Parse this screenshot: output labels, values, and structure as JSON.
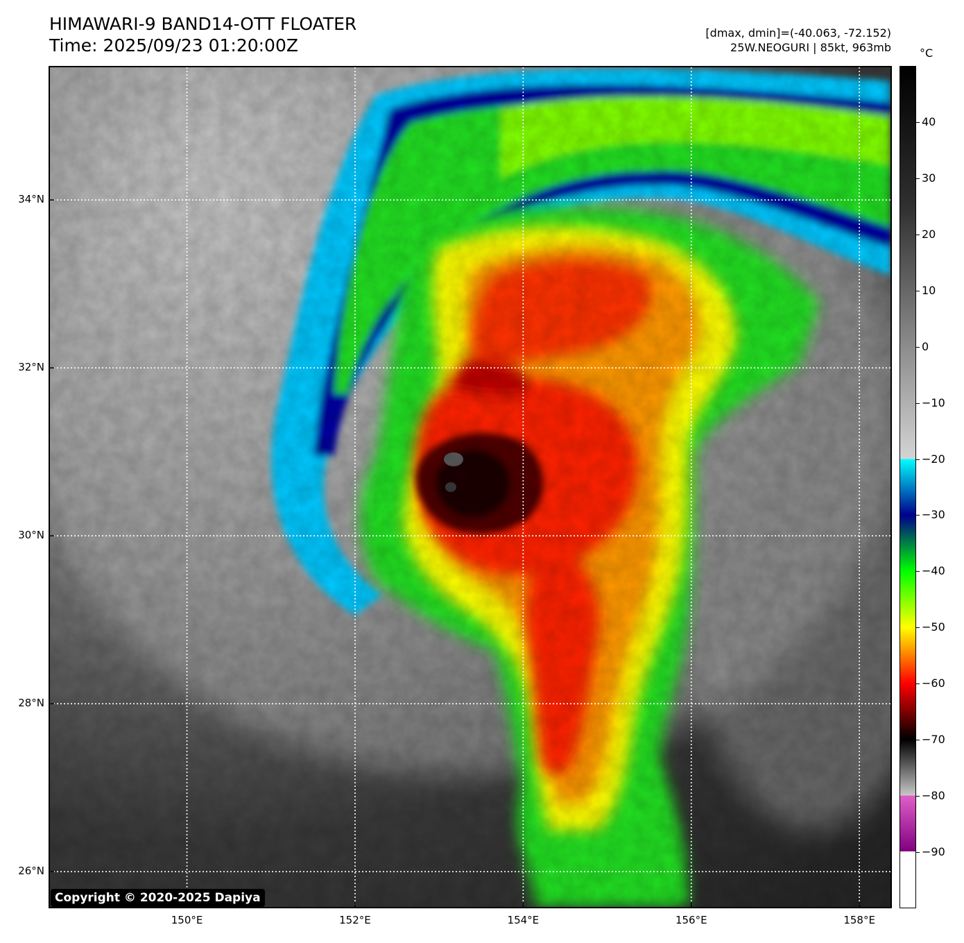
{
  "header": {
    "title_line1": "HIMAWARI-9 BAND14-OTT FLOATER",
    "title_line2": "Time: 2025/09/23 01:20:00Z",
    "dmax_dmin": "[dmax, dmin]=(-40.063, -72.152)",
    "storm_info": "25W.NEOGURI | 85kt, 963mb"
  },
  "map": {
    "lat_ticks": [
      {
        "value": 34,
        "label": "34°N"
      },
      {
        "value": 32,
        "label": "32°N"
      },
      {
        "value": 30,
        "label": "30°N"
      },
      {
        "value": 28,
        "label": "28°N"
      },
      {
        "value": 26,
        "label": "26°N"
      }
    ],
    "lon_ticks": [
      {
        "value": 150,
        "label": "150°E"
      },
      {
        "value": 152,
        "label": "152°E"
      },
      {
        "value": 154,
        "label": "154°E"
      },
      {
        "value": 156,
        "label": "156°E"
      },
      {
        "value": 158,
        "label": "158°E"
      }
    ],
    "lat_range": [
      25.58,
      35.58
    ],
    "lon_range": [
      148.37,
      158.37
    ],
    "storm_center": {
      "lon": 153.1,
      "lat": 30.7
    },
    "gridlines": "dotted white",
    "copyright": "Copyright © 2020-2025 Dapiya"
  },
  "colorbar": {
    "unit": "°C",
    "range": [
      -100,
      50
    ],
    "ticks": [
      {
        "value": 40,
        "label": "40"
      },
      {
        "value": 30,
        "label": "30"
      },
      {
        "value": 20,
        "label": "20"
      },
      {
        "value": 10,
        "label": "10"
      },
      {
        "value": 0,
        "label": "0"
      },
      {
        "value": -10,
        "label": "−10"
      },
      {
        "value": -20,
        "label": "−20"
      },
      {
        "value": -30,
        "label": "−30"
      },
      {
        "value": -40,
        "label": "−40"
      },
      {
        "value": -50,
        "label": "−50"
      },
      {
        "value": -60,
        "label": "−60"
      },
      {
        "value": -70,
        "label": "−70"
      },
      {
        "value": -80,
        "label": "−80"
      },
      {
        "value": -90,
        "label": "−90"
      }
    ],
    "color_stops": [
      {
        "t": 50,
        "color": "#000000"
      },
      {
        "t": 25,
        "color": "#303030"
      },
      {
        "t": 0,
        "color": "#8c8c8c"
      },
      {
        "t": -20,
        "color": "#d4d4d4"
      },
      {
        "t": -20,
        "color": "#00ffff"
      },
      {
        "t": -30,
        "color": "#00008c"
      },
      {
        "t": -40,
        "color": "#00ff00"
      },
      {
        "t": -50,
        "color": "#ffff00"
      },
      {
        "t": -60,
        "color": "#ff0000"
      },
      {
        "t": -70,
        "color": "#000000"
      },
      {
        "t": -80,
        "color": "#c8c8c8"
      },
      {
        "t": -80,
        "color": "#e060c8"
      },
      {
        "t": -90,
        "color": "#800080"
      },
      {
        "t": -90,
        "color": "#ffffff"
      },
      {
        "t": -100,
        "color": "#ffffff"
      }
    ]
  }
}
